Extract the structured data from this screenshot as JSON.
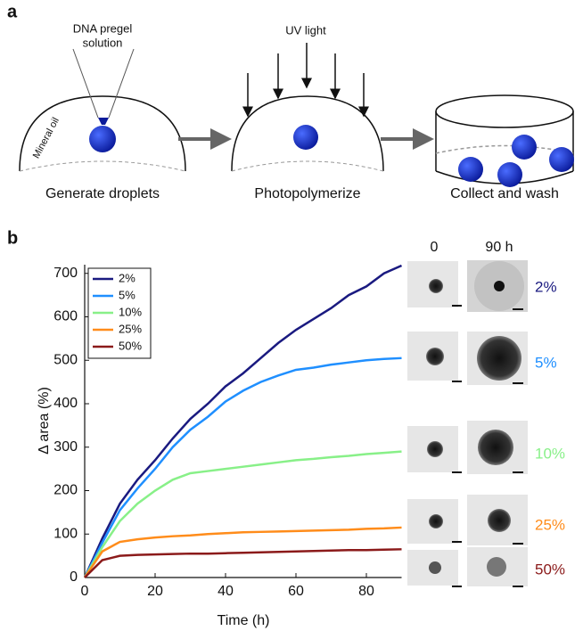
{
  "panel_a": {
    "label": "a",
    "pipette_label_1": "DNA pregel",
    "pipette_label_2": "solution",
    "oil_label": "Mineral oil",
    "uv_label": "UV light",
    "steps": [
      "Generate droplets",
      "Photopolymerize",
      "Collect and wash"
    ]
  },
  "panel_b": {
    "label": "b",
    "image_headers": [
      "0",
      "90 h"
    ]
  },
  "chart_data": {
    "type": "line",
    "xlabel": "Time (h)",
    "ylabel": "Δ area (%)",
    "x": [
      0,
      5,
      10,
      15,
      20,
      25,
      30,
      35,
      40,
      45,
      50,
      55,
      60,
      65,
      70,
      75,
      80,
      85,
      90
    ],
    "series": [
      {
        "name": "2%",
        "color": "#1a1a80",
        "values": [
          0,
          90,
          170,
          225,
          270,
          320,
          365,
          400,
          440,
          470,
          505,
          540,
          570,
          595,
          620,
          650,
          670,
          700,
          718
        ]
      },
      {
        "name": "5%",
        "color": "#1f8fff",
        "values": [
          0,
          80,
          155,
          205,
          250,
          300,
          340,
          370,
          405,
          430,
          450,
          465,
          478,
          483,
          490,
          495,
          500,
          503,
          505
        ]
      },
      {
        "name": "10%",
        "color": "#88f088",
        "values": [
          0,
          70,
          130,
          170,
          200,
          225,
          240,
          245,
          250,
          255,
          260,
          265,
          270,
          273,
          277,
          280,
          284,
          287,
          290
        ]
      },
      {
        "name": "25%",
        "color": "#ff8c1a",
        "values": [
          0,
          60,
          82,
          88,
          92,
          95,
          97,
          100,
          102,
          104,
          105,
          106,
          107,
          108,
          109,
          110,
          112,
          113,
          115
        ]
      },
      {
        "name": "50%",
        "color": "#8b1a1a",
        "values": [
          0,
          40,
          50,
          52,
          53,
          54,
          55,
          55,
          56,
          57,
          58,
          59,
          60,
          61,
          62,
          63,
          63,
          64,
          65
        ]
      }
    ],
    "xlim": [
      0,
      90
    ],
    "ylim": [
      0,
      720
    ],
    "xticks": [
      0,
      20,
      40,
      60,
      80
    ],
    "yticks": [
      0,
      100,
      200,
      300,
      400,
      500,
      600,
      700
    ],
    "legend": "upper-left"
  }
}
